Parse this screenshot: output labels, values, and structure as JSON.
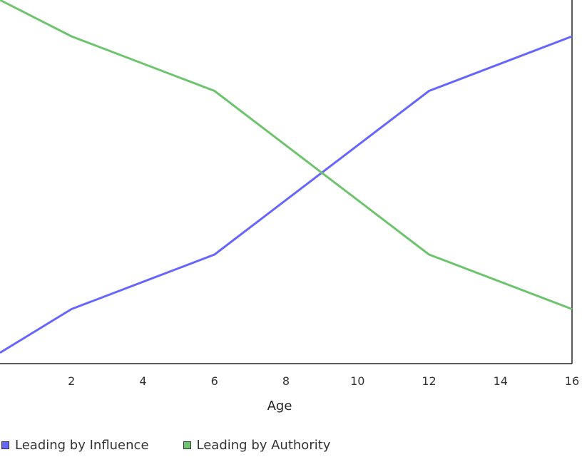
{
  "chart_data": {
    "type": "line",
    "title": "",
    "xlabel": "Age",
    "ylabel": "",
    "xlim": [
      0,
      16
    ],
    "ylim": [
      0,
      10
    ],
    "xticks": [
      2,
      4,
      6,
      8,
      10,
      12,
      14,
      16
    ],
    "grid": false,
    "legend_position": "bottom-left",
    "series": [
      {
        "name": "Leading by Influence",
        "color": "#6666ff",
        "x": [
          0,
          2,
          6,
          12,
          16
        ],
        "y": [
          0.3,
          1.5,
          3.0,
          7.5,
          9.0
        ]
      },
      {
        "name": "Leading by Authority",
        "color": "#6ec46e",
        "x": [
          0,
          2,
          6,
          12,
          16
        ],
        "y": [
          10.2,
          9.0,
          7.5,
          3.0,
          1.5
        ]
      }
    ]
  }
}
